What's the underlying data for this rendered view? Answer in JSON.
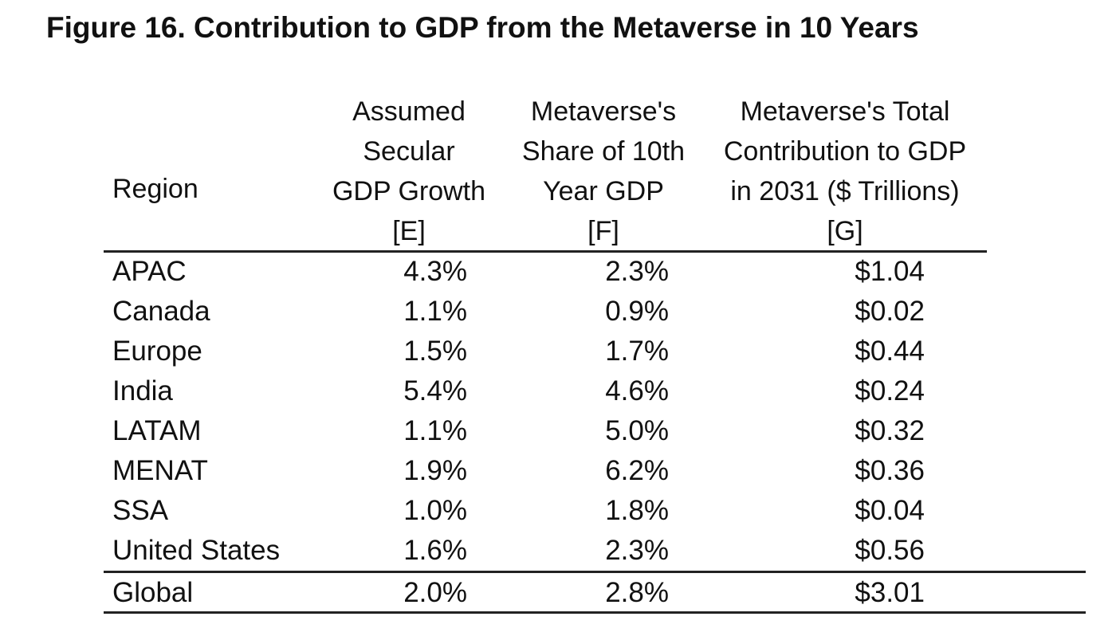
{
  "title": "Figure 16. Contribution to GDP from the Metaverse in 10 Years",
  "chart_data": {
    "type": "table",
    "columns": [
      {
        "key": "region",
        "lines": [
          "Region"
        ]
      },
      {
        "key": "e",
        "lines": [
          "Assumed",
          "Secular",
          "GDP Growth",
          "[E]"
        ]
      },
      {
        "key": "f",
        "lines": [
          "Metaverse's",
          "Share of 10th",
          "Year GDP",
          "[F]"
        ]
      },
      {
        "key": "g",
        "lines": [
          "Metaverse's Total",
          "Contribution to GDP",
          "in 2031 ($ Trillions)",
          "[G]"
        ]
      }
    ],
    "rows": [
      {
        "region": "APAC",
        "e": "4.3%",
        "f": "2.3%",
        "g": "$1.04"
      },
      {
        "region": "Canada",
        "e": "1.1%",
        "f": "0.9%",
        "g": "$0.02"
      },
      {
        "region": "Europe",
        "e": "1.5%",
        "f": "1.7%",
        "g": "$0.44"
      },
      {
        "region": "India",
        "e": "5.4%",
        "f": "4.6%",
        "g": "$0.24"
      },
      {
        "region": "LATAM",
        "e": "1.1%",
        "f": "5.0%",
        "g": "$0.32"
      },
      {
        "region": "MENAT",
        "e": "1.9%",
        "f": "6.2%",
        "g": "$0.36"
      },
      {
        "region": "SSA",
        "e": "1.0%",
        "f": "1.8%",
        "g": "$0.04"
      },
      {
        "region": "United States",
        "e": "1.6%",
        "f": "2.3%",
        "g": "$0.56"
      }
    ],
    "total_row": {
      "region": "Global",
      "e": "2.0%",
      "f": "2.8%",
      "g": "$3.01"
    }
  }
}
